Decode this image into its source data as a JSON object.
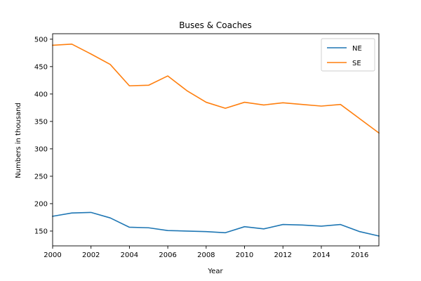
{
  "chart_data": {
    "type": "line",
    "title": "Buses & Coaches",
    "xlabel": "Year",
    "ylabel": "Numbers in thousand",
    "x": [
      2000,
      2001,
      2002,
      2003,
      2004,
      2005,
      2006,
      2007,
      2008,
      2009,
      2010,
      2011,
      2012,
      2013,
      2014,
      2015,
      2016,
      2017
    ],
    "xlim": [
      2000,
      2017
    ],
    "ylim": [
      123,
      510
    ],
    "xticks": [
      2000,
      2002,
      2004,
      2006,
      2008,
      2010,
      2012,
      2014,
      2016
    ],
    "yticks": [
      150,
      200,
      250,
      300,
      350,
      400,
      450,
      500
    ],
    "grid": false,
    "legend_position": "top-right",
    "series": [
      {
        "name": "NE",
        "color": "#1f77b4",
        "values": [
          177,
          183,
          184,
          174,
          157,
          156,
          151,
          150,
          149,
          147,
          158,
          154,
          162,
          161,
          159,
          162,
          149,
          141
        ]
      },
      {
        "name": "SE",
        "color": "#ff7f0e",
        "values": [
          489,
          491,
          473,
          454,
          415,
          416,
          433,
          406,
          385,
          374,
          385,
          380,
          384,
          381,
          378,
          381,
          355,
          329
        ]
      }
    ]
  }
}
